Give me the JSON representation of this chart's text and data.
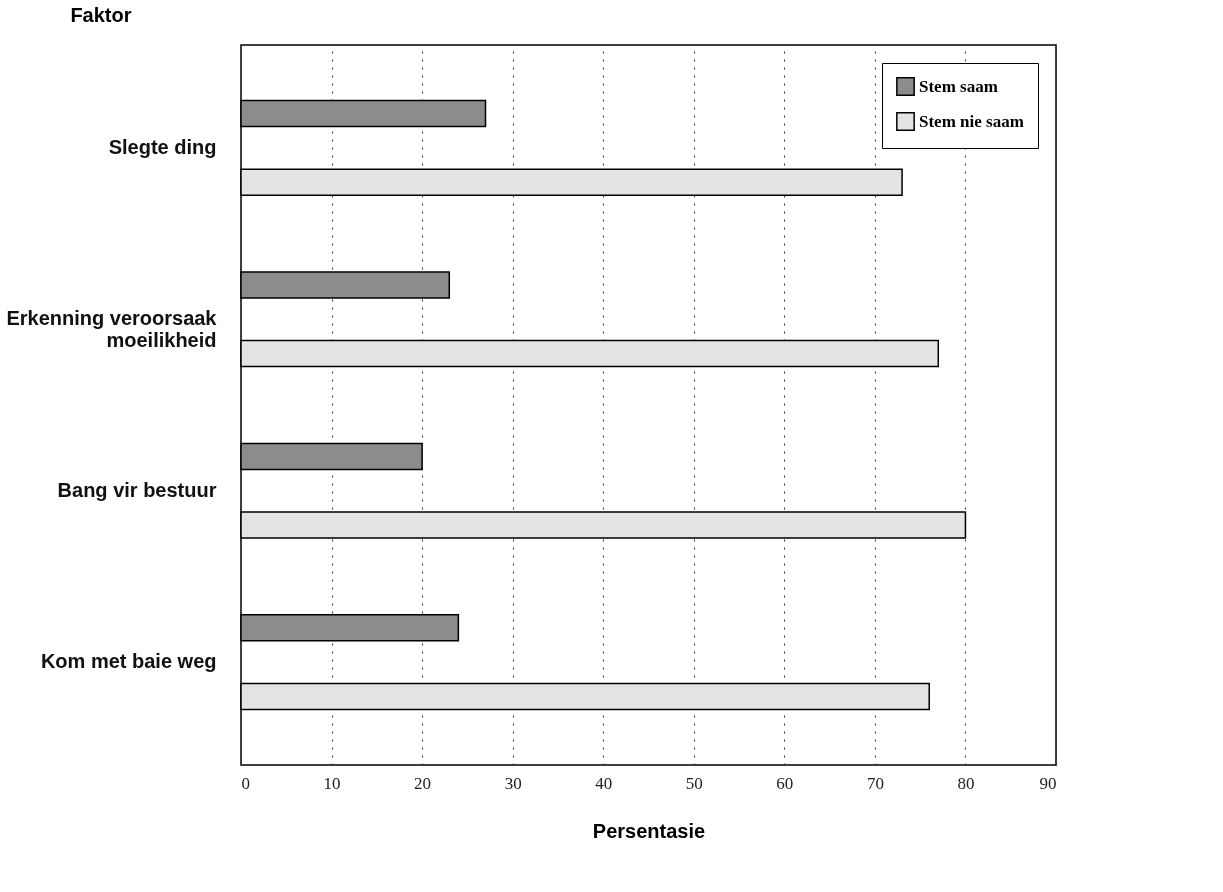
{
  "chart_data": {
    "type": "bar",
    "orientation": "horizontal",
    "xlabel": "Persentasie",
    "ylabel": "Faktor",
    "categories": [
      "Slegte ding",
      "Erkenning veroorsaak\nmoeilikheid",
      "Bang vir bestuur",
      "Kom met baie weg"
    ],
    "series": [
      {
        "name": "Stem saam",
        "color": "#8c8c8c",
        "values": [
          27,
          23,
          20,
          24
        ]
      },
      {
        "name": "Stem nie saam",
        "color": "#e4e4e4",
        "values": [
          73,
          77,
          80,
          76
        ]
      }
    ],
    "xlim": [
      0,
      90
    ],
    "xticks": [
      0,
      10,
      20,
      30,
      40,
      50,
      60,
      70,
      80,
      90
    ],
    "grid": "x",
    "legend": "top right"
  }
}
